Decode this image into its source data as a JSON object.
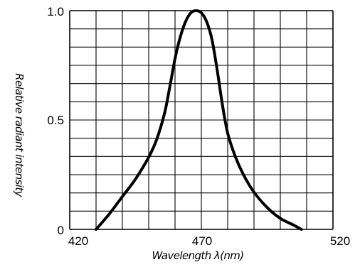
{
  "chart_data": {
    "type": "line",
    "title": "",
    "xlabel": "Wavelength λ(nm)",
    "ylabel": "Relative radiant intensity",
    "xlim": [
      420,
      520
    ],
    "ylim": [
      0,
      1.0
    ],
    "x_ticks": [
      {
        "value": 420,
        "label": "420"
      },
      {
        "value": 470,
        "label": "470"
      },
      {
        "value": 520,
        "label": "520"
      }
    ],
    "y_ticks": [
      {
        "value": 0,
        "label": "0"
      },
      {
        "value": 0.5,
        "label": "0.5"
      },
      {
        "value": 1.0,
        "label": "1.0"
      }
    ],
    "grid": true,
    "grid_x_divisions": 10,
    "grid_y_divisions": 12,
    "legend": "none",
    "line_color": "#000000",
    "series": [
      {
        "x": [
          430,
          435,
          440,
          445,
          450,
          453,
          456,
          458,
          460,
          462,
          464,
          466,
          468,
          470,
          472,
          474,
          476,
          478,
          480,
          483,
          486,
          490,
          495,
          500,
          505,
          508
        ],
        "values": [
          0.0,
          0.07,
          0.15,
          0.23,
          0.33,
          0.41,
          0.53,
          0.65,
          0.78,
          0.88,
          0.95,
          0.99,
          1.0,
          0.99,
          0.95,
          0.87,
          0.73,
          0.57,
          0.44,
          0.33,
          0.25,
          0.17,
          0.1,
          0.05,
          0.02,
          0.0
        ]
      }
    ]
  }
}
